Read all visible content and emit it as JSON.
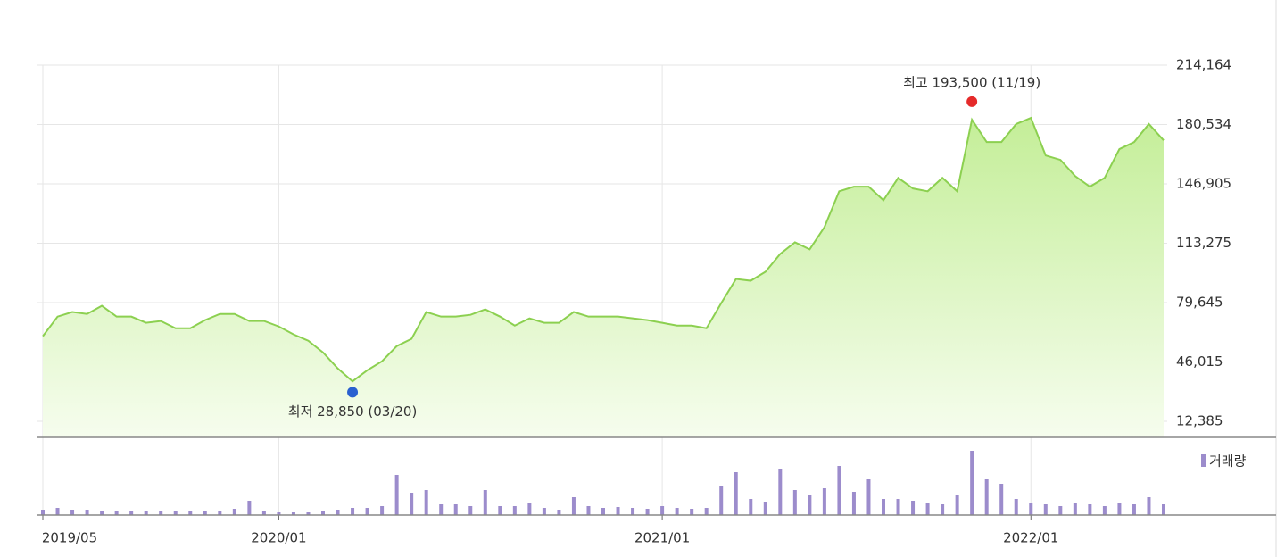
{
  "chart_data": {
    "type": "line",
    "categories": [
      "2019/05",
      null,
      null,
      null,
      null,
      null,
      null,
      null,
      null,
      null,
      null,
      null,
      null,
      null,
      null,
      null,
      "2020/01",
      null,
      null,
      null,
      null,
      null,
      null,
      null,
      null,
      null,
      null,
      null,
      null,
      null,
      null,
      null,
      null,
      null,
      null,
      null,
      null,
      null,
      null,
      null,
      null,
      null,
      "2021/01",
      null,
      null,
      null,
      null,
      null,
      null,
      null,
      null,
      null,
      null,
      null,
      null,
      null,
      null,
      null,
      null,
      null,
      null,
      null,
      null,
      null,
      null,
      null,
      null,
      "2022/01",
      null,
      null,
      null,
      null,
      null,
      null,
      null,
      null,
      null
    ],
    "series": [
      {
        "color": "#8cd050",
        "values": [
          60600,
          71700,
          74300,
          73200,
          77800,
          71700,
          71700,
          68200,
          69200,
          65100,
          65100,
          69700,
          73200,
          73200,
          69200,
          69200,
          66100,
          61600,
          58000,
          51400,
          42300,
          35000,
          41300,
          46400,
          55000,
          59100,
          74300,
          71700,
          71700,
          72700,
          75800,
          71700,
          66600,
          70700,
          68200,
          68200,
          74300,
          71700,
          71700,
          71700,
          70700,
          69700,
          68200,
          66600,
          66600,
          65100,
          79300,
          93000,
          92000,
          97100,
          107200,
          113800,
          109800,
          122400,
          142700,
          145300,
          145300,
          137600,
          150300,
          144300,
          142700,
          150300,
          142700,
          183300,
          170600,
          170600,
          180800,
          184300,
          163000,
          160500,
          151300,
          145300,
          150300,
          166600,
          170600,
          180800,
          171600
        ]
      },
      {
        "name": "거래량",
        "color": "#9c8ccc",
        "values": [
          6,
          8,
          6,
          6,
          5,
          5,
          4,
          4,
          4,
          4,
          4,
          4,
          5,
          7,
          16,
          4,
          3,
          3,
          3,
          4,
          6,
          8,
          8,
          10,
          45,
          25,
          28,
          12,
          12,
          10,
          28,
          10,
          10,
          14,
          8,
          6,
          20,
          10,
          8,
          9,
          8,
          7,
          10,
          8,
          7,
          8,
          32,
          48,
          18,
          15,
          52,
          28,
          22,
          30,
          55,
          26,
          40,
          18,
          18,
          16,
          14,
          12,
          22,
          72,
          40,
          35,
          18,
          14,
          12,
          10,
          14,
          12,
          10,
          14,
          12,
          20,
          12
        ]
      }
    ],
    "ylim": [
      3255,
      214164
    ],
    "yticks": [
      {
        "value": 12385,
        "label": "12,385"
      },
      {
        "value": 46015,
        "label": "46,015"
      },
      {
        "value": 79645,
        "label": "79,645"
      },
      {
        "value": 113275,
        "label": "113,275"
      },
      {
        "value": 146905,
        "label": "146,905"
      },
      {
        "value": 180534,
        "label": "180,534"
      },
      {
        "value": 214164,
        "label": "214,164"
      }
    ],
    "volume_lim": [
      0,
      80
    ],
    "annotations": [
      {
        "text": "최고 193,500 (11/19)",
        "value": 193500,
        "index": 63,
        "color": "#e52a2a"
      },
      {
        "text": "최저 28,850 (03/20)",
        "value": 28850,
        "index": 21,
        "color": "#2a60d0"
      }
    ],
    "grid": true
  }
}
